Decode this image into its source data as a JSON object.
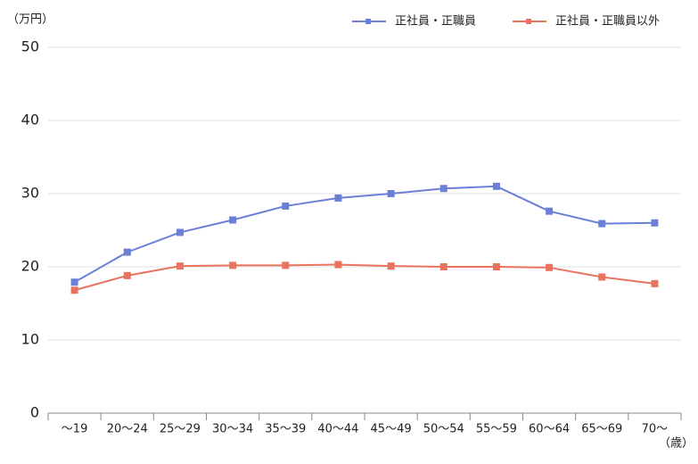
{
  "chart_data": {
    "type": "line",
    "y_unit": "（万円）",
    "x_unit": "（歳）",
    "categories": [
      "〜19",
      "20〜24",
      "25〜29",
      "30〜34",
      "35〜39",
      "40〜44",
      "45〜49",
      "50〜54",
      "55〜59",
      "60〜64",
      "65〜69",
      "70〜"
    ],
    "series": [
      {
        "name": "正社員・正職員",
        "color": "#6b7fd7",
        "values": [
          17.9,
          22.0,
          24.7,
          26.4,
          28.3,
          29.4,
          30.0,
          30.7,
          31.0,
          27.6,
          25.9,
          26.0
        ]
      },
      {
        "name": "正社員・正職員以外",
        "color": "#e8735e",
        "values": [
          16.8,
          18.8,
          20.1,
          20.2,
          20.2,
          20.3,
          20.1,
          20.0,
          20.0,
          19.9,
          18.6,
          17.7
        ]
      }
    ],
    "ylim": [
      0,
      50
    ],
    "yticks": [
      0,
      10,
      20,
      30,
      40,
      50
    ],
    "grid": true,
    "legend": "top-right"
  }
}
